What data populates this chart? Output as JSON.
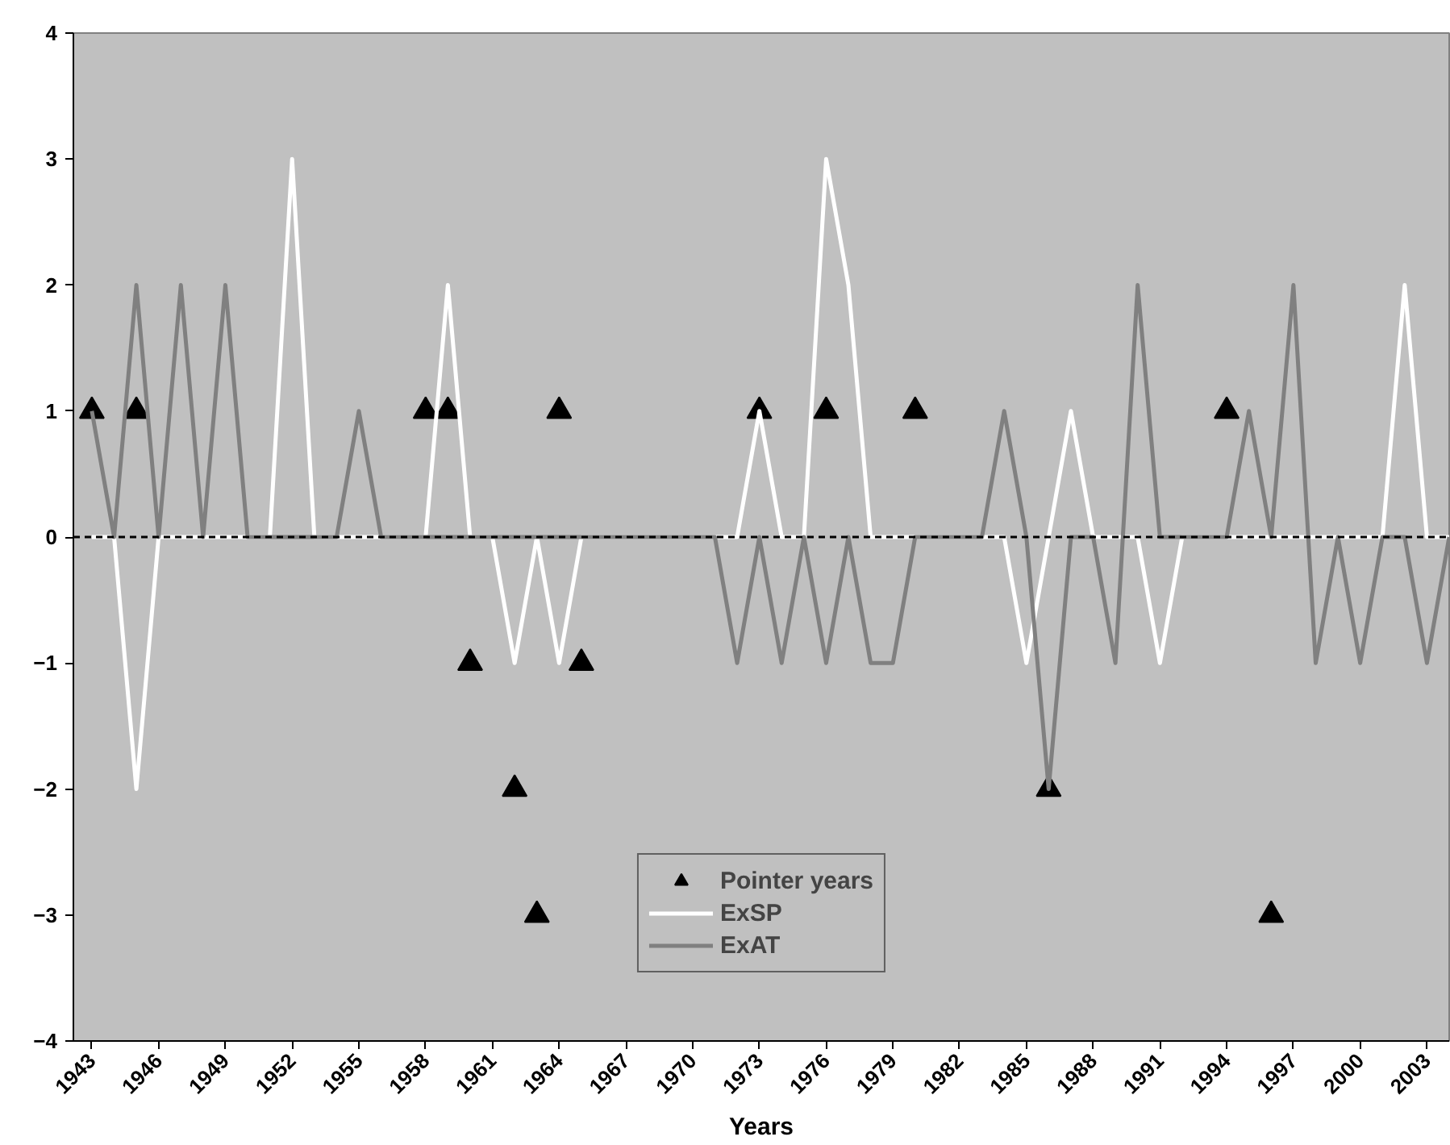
{
  "chart_data": {
    "type": "line",
    "xlabel": "Years",
    "categories": [
      "1943",
      null,
      null,
      "1946",
      null,
      null,
      "1949",
      null,
      null,
      "1952",
      null,
      null,
      "1955",
      null,
      null,
      "1958",
      null,
      null,
      "1961",
      null,
      null,
      "1964",
      null,
      null,
      "1967",
      null,
      null,
      "1970",
      null,
      null,
      "1973",
      null,
      null,
      "1976",
      null,
      null,
      "1979",
      null,
      null,
      "1982",
      null,
      null,
      "1985",
      null,
      null,
      "1988",
      null,
      null,
      "1991",
      null,
      null,
      "1994",
      null,
      null,
      "1997",
      null,
      null,
      "2000",
      null,
      null,
      "2003",
      null
    ],
    "series": [
      {
        "name": "Pointer years",
        "type": "scatter",
        "marker": "triangle",
        "color": "#000000",
        "values": [
          1,
          null,
          1,
          null,
          null,
          null,
          null,
          null,
          null,
          null,
          null,
          null,
          null,
          null,
          null,
          1,
          1,
          -1,
          null,
          -2,
          -3,
          1,
          -1,
          null,
          null,
          null,
          null,
          null,
          null,
          null,
          1,
          null,
          null,
          1,
          null,
          null,
          null,
          1,
          null,
          null,
          null,
          null,
          null,
          -2,
          null,
          null,
          null,
          null,
          null,
          null,
          null,
          1,
          null,
          -3,
          null,
          null,
          null,
          null,
          null,
          null,
          null,
          null
        ]
      },
      {
        "name": "ExSP",
        "color": "#ffffff",
        "values": [
          0,
          0,
          -2,
          0,
          0,
          0,
          0,
          0,
          0,
          3,
          0,
          0,
          0,
          0,
          0,
          0,
          2,
          0,
          0,
          -1,
          0,
          -1,
          0,
          0,
          0,
          0,
          0,
          0,
          0,
          0,
          1,
          0,
          0,
          3,
          2,
          0,
          0,
          0,
          0,
          0,
          0,
          0,
          -1,
          0,
          1,
          0,
          0,
          0,
          -1,
          0,
          0,
          0,
          0,
          0,
          0,
          0,
          0,
          0,
          0,
          2,
          0,
          0
        ]
      },
      {
        "name": "ExAT",
        "color": "#808080",
        "values": [
          1,
          0,
          2,
          0,
          2,
          0,
          2,
          0,
          0,
          0,
          0,
          0,
          1,
          0,
          0,
          0,
          0,
          0,
          0,
          0,
          0,
          0,
          0,
          0,
          0,
          0,
          0,
          0,
          0,
          -1,
          0,
          -1,
          0,
          -1,
          0,
          -1,
          -1,
          0,
          0,
          0,
          0,
          1,
          0,
          -2,
          0,
          0,
          -1,
          2,
          0,
          0,
          0,
          0,
          1,
          0,
          2,
          -1,
          0,
          -1,
          0,
          0,
          -1,
          0
        ]
      }
    ],
    "ylim": [
      -4,
      4
    ],
    "yticks": [
      -4,
      -3,
      -2,
      -1,
      0,
      1,
      2,
      3,
      4
    ],
    "ref_lines": [
      {
        "axis": "y",
        "value": 0,
        "color": "#000000",
        "line_style": "dashed"
      }
    ],
    "grid": false,
    "legend": "bottom"
  }
}
